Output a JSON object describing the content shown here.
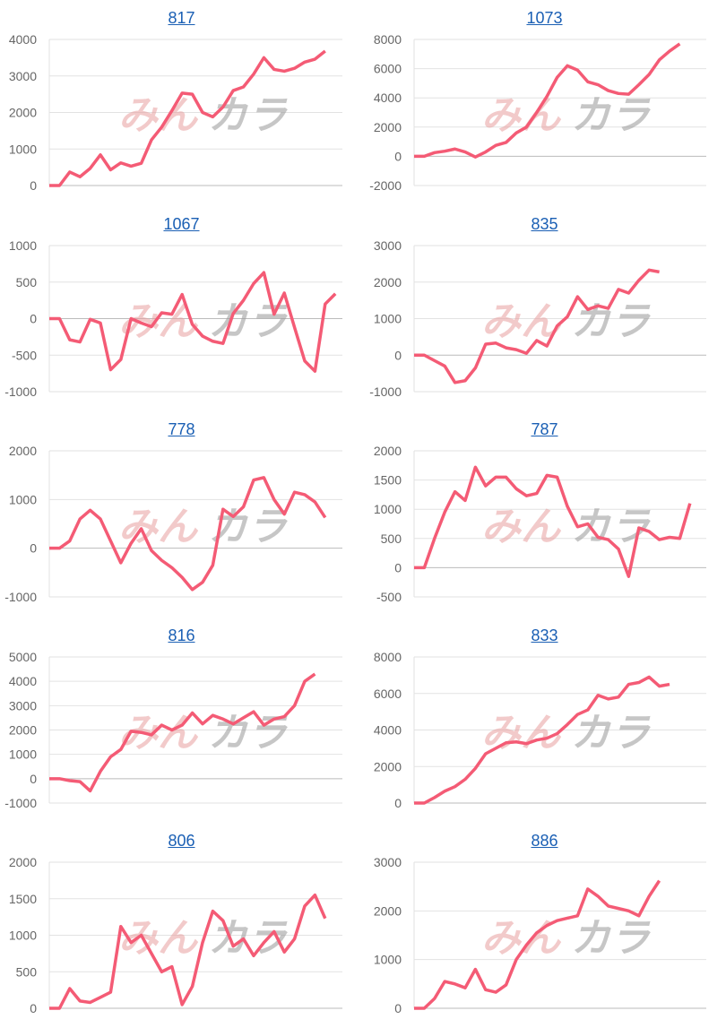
{
  "watermark": {
    "text_pink": "みん",
    "text_gray": "カラ"
  },
  "colors": {
    "line": "#f45b75",
    "title": "#1a5fb4",
    "grid": "#e2e2e2",
    "zero": "#bbbbbb",
    "tick": "#666666"
  },
  "chart_data": [
    {
      "type": "line",
      "title": "817",
      "ylim": [
        0,
        4000
      ],
      "yticks": [
        0,
        1000,
        2000,
        3000,
        4000
      ],
      "grid": true,
      "values": [
        0,
        0,
        370,
        240,
        470,
        840,
        430,
        620,
        530,
        610,
        1250,
        1600,
        2050,
        2530,
        2500,
        2000,
        1880,
        2150,
        2600,
        2700,
        3050,
        3500,
        3180,
        3130,
        3210,
        3380,
        3460,
        3680
      ]
    },
    {
      "type": "line",
      "title": "1073",
      "ylim": [
        -2000,
        8000
      ],
      "yticks": [
        -2000,
        0,
        2000,
        4000,
        6000,
        8000
      ],
      "grid": true,
      "values": [
        0,
        0,
        250,
        350,
        500,
        300,
        -50,
        300,
        750,
        950,
        1600,
        2000,
        3000,
        4100,
        5400,
        6200,
        5900,
        5100,
        4900,
        4500,
        4300,
        4250,
        4900,
        5600,
        6600,
        7200,
        7700
      ]
    },
    {
      "type": "line",
      "title": "1067",
      "ylim": [
        -1000,
        1000
      ],
      "yticks": [
        -1000,
        -500,
        0,
        500,
        1000
      ],
      "grid": true,
      "values": [
        0,
        0,
        -290,
        -320,
        -10,
        -60,
        -700,
        -560,
        0,
        -60,
        -110,
        80,
        60,
        330,
        -80,
        -240,
        -310,
        -340,
        70,
        250,
        480,
        630,
        60,
        350,
        -120,
        -580,
        -720,
        200,
        340
      ]
    },
    {
      "type": "line",
      "title": "835",
      "ylim": [
        -1000,
        3000
      ],
      "yticks": [
        -1000,
        0,
        1000,
        2000,
        3000
      ],
      "grid": true,
      "values": [
        0,
        0,
        -150,
        -300,
        -750,
        -700,
        -350,
        300,
        330,
        200,
        150,
        50,
        400,
        250,
        800,
        1050,
        1600,
        1250,
        1350,
        1280,
        1800,
        1700,
        2050,
        2330,
        2280
      ]
    },
    {
      "type": "line",
      "title": "778",
      "ylim": [
        -1000,
        2000
      ],
      "yticks": [
        -1000,
        0,
        1000,
        2000
      ],
      "grid": true,
      "values": [
        0,
        0,
        150,
        600,
        780,
        600,
        150,
        -300,
        100,
        400,
        -50,
        -250,
        -400,
        -600,
        -850,
        -700,
        -350,
        800,
        650,
        850,
        1400,
        1450,
        1000,
        700,
        1150,
        1100,
        950,
        630
      ]
    },
    {
      "type": "line",
      "title": "787",
      "ylim": [
        -500,
        2000
      ],
      "yticks": [
        -500,
        0,
        500,
        1000,
        1500,
        2000
      ],
      "grid": true,
      "values": [
        0,
        0,
        500,
        950,
        1300,
        1150,
        1720,
        1400,
        1550,
        1550,
        1350,
        1230,
        1270,
        1580,
        1550,
        1050,
        700,
        750,
        520,
        480,
        320,
        -150,
        680,
        620,
        480,
        520,
        500,
        1100
      ]
    },
    {
      "type": "line",
      "title": "816",
      "ylim": [
        -1000,
        5000
      ],
      "yticks": [
        -1000,
        0,
        1000,
        2000,
        3000,
        4000,
        5000
      ],
      "grid": true,
      "values": [
        0,
        0,
        -80,
        -120,
        -500,
        300,
        900,
        1200,
        1950,
        1900,
        1800,
        2200,
        2000,
        2200,
        2700,
        2250,
        2600,
        2450,
        2250,
        2500,
        2750,
        2200,
        2450,
        2550,
        3000,
        4000,
        4300
      ]
    },
    {
      "type": "line",
      "title": "833",
      "ylim": [
        0,
        8000
      ],
      "yticks": [
        0,
        2000,
        4000,
        6000,
        8000
      ],
      "grid": true,
      "values": [
        0,
        0,
        300,
        650,
        900,
        1300,
        1900,
        2700,
        3000,
        3300,
        3350,
        3250,
        3450,
        3550,
        3800,
        4300,
        4850,
        5100,
        5900,
        5700,
        5800,
        6500,
        6600,
        6900,
        6400,
        6500
      ]
    },
    {
      "type": "line",
      "title": "806",
      "ylim": [
        0,
        2000
      ],
      "yticks": [
        0,
        500,
        1000,
        1500,
        2000
      ],
      "grid": true,
      "values": [
        0,
        0,
        270,
        100,
        80,
        150,
        220,
        1120,
        900,
        1000,
        750,
        500,
        570,
        50,
        300,
        900,
        1330,
        1200,
        850,
        950,
        720,
        900,
        1050,
        770,
        950,
        1400,
        1550,
        1230
      ]
    },
    {
      "type": "line",
      "title": "886",
      "ylim": [
        0,
        3000
      ],
      "yticks": [
        0,
        1000,
        2000,
        3000
      ],
      "grid": true,
      "values": [
        0,
        0,
        200,
        550,
        500,
        420,
        800,
        380,
        330,
        480,
        1000,
        1300,
        1550,
        1700,
        1800,
        1850,
        1900,
        2450,
        2300,
        2100,
        2050,
        2000,
        1900,
        2300,
        2620
      ]
    }
  ]
}
